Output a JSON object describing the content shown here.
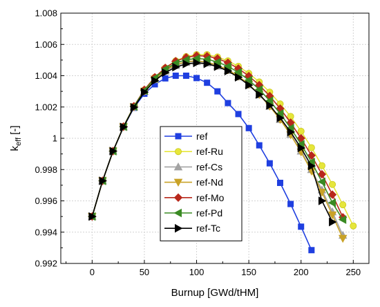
{
  "chart_data": {
    "type": "line",
    "xlabel": "Burnup [GWd/tHM]",
    "ylabel_main": "k",
    "ylabel_sub": "eff",
    "ylabel_suffix": " [-]",
    "xlim": [
      -30,
      265
    ],
    "ylim": [
      0.992,
      1.008
    ],
    "xticks": [
      0,
      50,
      100,
      150,
      200,
      250
    ],
    "xtick_labels": [
      "0",
      "50",
      "100",
      "150",
      "200",
      "250"
    ],
    "yticks": [
      0.992,
      0.994,
      0.996,
      0.998,
      1.0,
      1.002,
      1.004,
      1.006,
      1.008
    ],
    "ytick_labels": [
      "0.992",
      "0.994",
      "0.996",
      "0.998",
      "1",
      "1.002",
      "1.004",
      "1.006",
      "1.008"
    ],
    "grid": true,
    "legend_position": "center-bottom",
    "series": [
      {
        "name": "ref",
        "color": "#1f3fe0",
        "marker": "square",
        "x": [
          0,
          10,
          20,
          30,
          40,
          50,
          60,
          70,
          80,
          90,
          100,
          110,
          120,
          130,
          140,
          150,
          160,
          170,
          180,
          190,
          200,
          210
        ],
        "y": [
          0.995,
          0.99728,
          0.99918,
          1.00071,
          1.00195,
          1.00285,
          1.00345,
          1.00383,
          1.004,
          1.004,
          1.00385,
          1.00355,
          1.003,
          1.00225,
          1.00155,
          1.00065,
          0.99955,
          0.9984,
          0.99715,
          0.9958,
          0.99435,
          0.99285
        ]
      },
      {
        "name": "ref-Ru",
        "color": "#e6e63a",
        "marker": "circle",
        "x": [
          0,
          10,
          20,
          30,
          40,
          50,
          60,
          70,
          80,
          90,
          100,
          110,
          120,
          130,
          140,
          150,
          160,
          170,
          180,
          190,
          200,
          210,
          220,
          230,
          240,
          250
        ],
        "y": [
          0.995,
          0.99728,
          0.99918,
          1.00075,
          1.00205,
          1.0031,
          1.0039,
          1.0045,
          1.00495,
          1.00522,
          1.00535,
          1.00535,
          1.0052,
          1.00495,
          1.0046,
          1.00415,
          1.0036,
          1.00295,
          1.0022,
          1.0014,
          1.00045,
          0.9994,
          0.99825,
          0.99705,
          0.99575,
          0.9944
        ]
      },
      {
        "name": "ref-Cs",
        "color": "#a3a3a3",
        "marker": "triangle-up",
        "x": [
          0,
          10,
          20,
          30,
          40,
          50,
          60,
          70,
          80,
          90,
          100,
          110,
          120,
          130,
          140,
          150,
          160,
          170,
          180,
          190,
          200,
          210,
          220,
          230,
          240
        ],
        "y": [
          0.995,
          0.99728,
          0.99918,
          1.00073,
          1.002,
          1.003,
          1.00375,
          1.0043,
          1.00465,
          1.00485,
          1.0049,
          1.00482,
          1.00462,
          1.00433,
          1.00393,
          1.00342,
          1.00278,
          1.00205,
          1.0012,
          1.00025,
          0.99918,
          0.998,
          0.9967,
          0.9953,
          0.9938
        ]
      },
      {
        "name": "ref-Nd",
        "color": "#c9a227",
        "marker": "triangle-down",
        "x": [
          0,
          10,
          20,
          30,
          40,
          50,
          60,
          70,
          80,
          90,
          100,
          110,
          120,
          130,
          140,
          150,
          160,
          170,
          180,
          190,
          200,
          210,
          220,
          230,
          240
        ],
        "y": [
          0.995,
          0.99728,
          0.99918,
          1.00073,
          1.002,
          1.003,
          1.00378,
          1.00435,
          1.0047,
          1.0049,
          1.00495,
          1.00487,
          1.00467,
          1.00437,
          1.00397,
          1.00345,
          1.0028,
          1.00205,
          1.0012,
          1.00022,
          0.99912,
          0.9979,
          0.99655,
          0.9951,
          0.9936
        ]
      },
      {
        "name": "ref-Mo",
        "color": "#b8281b",
        "marker": "diamond",
        "x": [
          0,
          10,
          20,
          30,
          40,
          50,
          60,
          70,
          80,
          90,
          100,
          110,
          120,
          130,
          140,
          150,
          160,
          170,
          180,
          190,
          200,
          210,
          220,
          230,
          240
        ],
        "y": [
          0.995,
          0.99728,
          0.99918,
          1.00075,
          1.00205,
          1.0031,
          1.0039,
          1.0045,
          1.00493,
          1.00517,
          1.00528,
          1.00525,
          1.0051,
          1.00483,
          1.00446,
          1.00398,
          1.0034,
          1.0027,
          1.0019,
          1.001,
          1.0,
          0.9989,
          0.9977,
          0.9964,
          0.99495
        ]
      },
      {
        "name": "ref-Pd",
        "color": "#3a8a23",
        "marker": "triangle-left",
        "x": [
          0,
          10,
          20,
          30,
          40,
          50,
          60,
          70,
          80,
          90,
          100,
          110,
          120,
          130,
          140,
          150,
          160,
          170,
          180,
          190,
          200,
          210,
          220,
          230,
          240
        ],
        "y": [
          0.995,
          0.99728,
          0.99918,
          1.00074,
          1.00203,
          1.00305,
          1.00385,
          1.00442,
          1.0048,
          1.00502,
          1.0051,
          1.00505,
          1.00488,
          1.0046,
          1.00422,
          1.00372,
          1.00312,
          1.0024,
          1.00158,
          1.00065,
          0.99962,
          0.99848,
          0.99722,
          0.99588,
          0.9948
        ]
      },
      {
        "name": "ref-Tc",
        "color": "#000000",
        "marker": "triangle-right",
        "x": [
          0,
          10,
          20,
          30,
          40,
          50,
          60,
          70,
          80,
          90,
          100,
          110,
          120,
          130,
          140,
          150,
          160,
          170,
          180,
          190,
          200,
          210,
          220,
          230
        ],
        "y": [
          0.995,
          0.99728,
          0.99918,
          1.00072,
          1.00198,
          1.00295,
          1.00368,
          1.0042,
          1.00455,
          1.00475,
          1.00482,
          1.00476,
          1.00458,
          1.0043,
          1.0039,
          1.0034,
          1.0028,
          1.0021,
          1.0013,
          1.0004,
          0.99938,
          0.99823,
          0.996,
          0.99465
        ]
      }
    ]
  }
}
